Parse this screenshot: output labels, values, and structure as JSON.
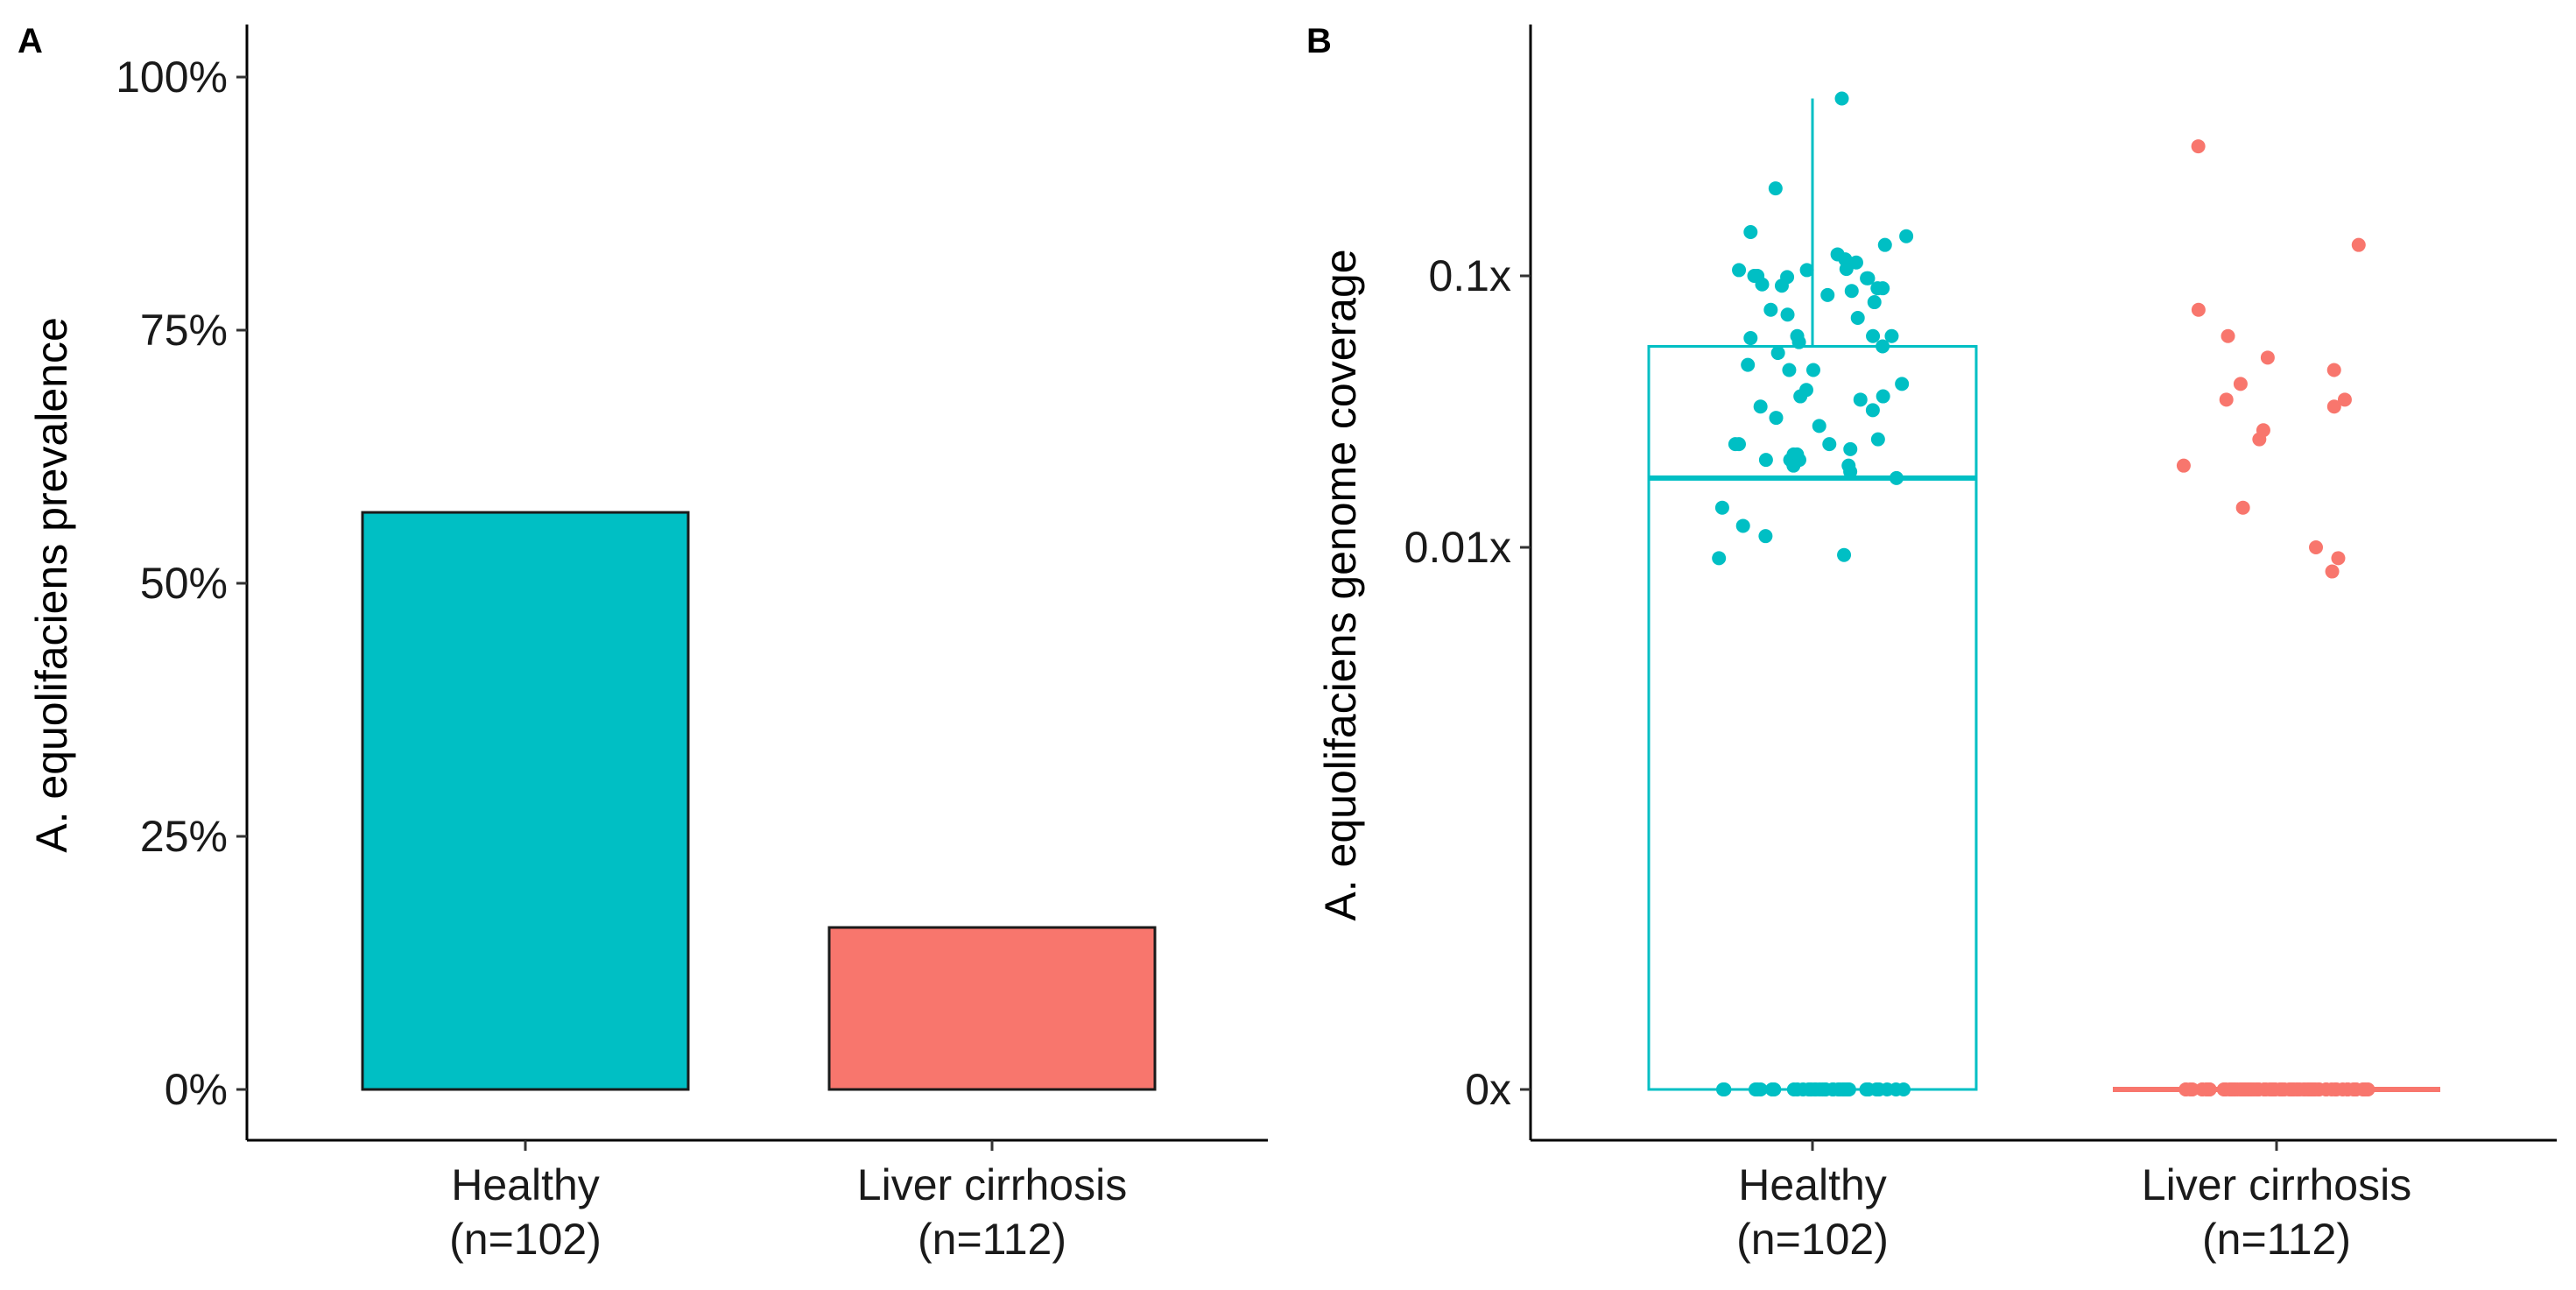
{
  "chart_data": [
    {
      "panel": "A",
      "type": "bar",
      "categories": [
        "Healthy",
        "Liver cirrhosis"
      ],
      "category_counts": [
        "(n=102)",
        "(n=112)"
      ],
      "values": [
        57,
        16
      ],
      "ylabel": "A. equolifaciens prevalence",
      "xlabel": "",
      "ylim": [
        0,
        100
      ],
      "yticks": [
        0,
        25,
        50,
        75,
        100
      ],
      "ytick_labels": [
        "0%",
        "25%",
        "50%",
        "75%",
        "100%"
      ],
      "colors": [
        "#00BFC4",
        "#F8766D"
      ],
      "grid": false
    },
    {
      "panel": "B",
      "type": "scatter",
      "subtype": "boxplot with jittered points",
      "categories": [
        "Healthy",
        "Liver cirrhosis"
      ],
      "category_counts": [
        "(n=102)",
        "(n=112)"
      ],
      "ylabel": "A. equolifaciens genome coverage",
      "xlabel": "",
      "yscale": "pseudo-log",
      "yticks": [
        0,
        0.01,
        0.1
      ],
      "ytick_labels": [
        "0x",
        "0.01x",
        "0.1x"
      ],
      "colors": [
        "#00BFC4",
        "#F8766D"
      ],
      "grid": false,
      "boxes": [
        {
          "category": "Healthy",
          "min": 0,
          "q1": 0,
          "median": 0.018,
          "q3": 0.055,
          "max": 0.45
        },
        {
          "category": "Liver cirrhosis",
          "min": 0,
          "q1": 0,
          "median": 0,
          "q3": 0,
          "max": 0
        }
      ],
      "series": [
        {
          "name": "Healthy",
          "values": [
            0.45,
            0.21,
            0.12,
            0.14,
            0.106,
            0.115,
            0.145,
            0.13,
            0.088,
            0.08,
            0.07,
            0.092,
            0.098,
            0.1,
            0.085,
            0.093,
            0.1,
            0.098,
            0.09,
            0.09,
            0.105,
            0.105,
            0.112,
            0.099,
            0.075,
            0.072,
            0.06,
            0.055,
            0.06,
            0.057,
            0.06,
            0.059,
            0.047,
            0.052,
            0.045,
            0.045,
            0.04,
            0.038,
            0.035,
            0.033,
            0.036,
            0.036,
            0.032,
            0.03,
            0.028,
            0.025,
            0.023,
            0.024,
            0.024,
            0.024,
            0.02,
            0.02,
            0.019,
            0.021,
            0.021,
            0.022,
            0.022,
            0.018,
            0.021,
            0.014,
            0.011,
            0.012,
            0.0095,
            0.0093
          ],
          "zero_count": 38
        },
        {
          "name": "Liver cirrhosis",
          "values": [
            0.3,
            0.13,
            0.075,
            0.06,
            0.05,
            0.045,
            0.04,
            0.035,
            0.035,
            0.033,
            0.025,
            0.027,
            0.02,
            0.014,
            0.01,
            0.0093,
            0.0085
          ],
          "zero_count": 95
        }
      ]
    }
  ]
}
